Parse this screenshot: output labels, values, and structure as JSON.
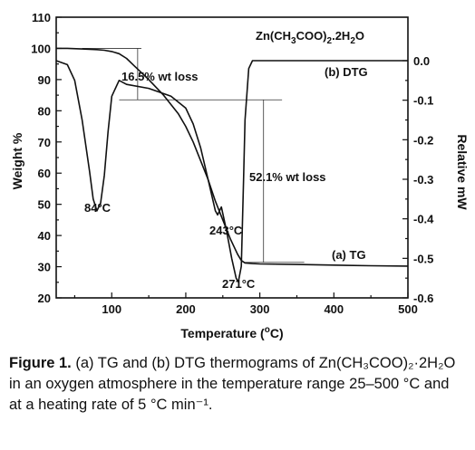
{
  "chart_data": {
    "type": "line",
    "xlabel": "Temperature (°C)",
    "ylabel_left": "Weight %",
    "ylabel_right": "Relative mW",
    "xlim": [
      25,
      500
    ],
    "ylim_left": [
      20,
      110
    ],
    "ylim_right": [
      -0.6,
      0.05
    ],
    "x_ticks": [
      100,
      200,
      300,
      400,
      500
    ],
    "y_ticks_left": [
      20,
      30,
      40,
      50,
      60,
      70,
      80,
      90,
      100,
      110
    ],
    "y_ticks_right": [
      "0.0",
      "-0.1",
      "-0.2",
      "-0.3",
      "-0.4",
      "-0.5",
      "-0.6"
    ],
    "compound_label": "Zn(CH3COO)2.2H2O",
    "series": [
      {
        "name": "(a) TG",
        "axis": "left",
        "x": [
          25,
          40,
          60,
          80,
          90,
          100,
          110,
          120,
          130,
          150,
          170,
          190,
          200,
          210,
          220,
          230,
          240,
          250,
          260,
          270,
          275,
          280,
          290,
          300,
          350,
          400,
          450,
          500
        ],
        "y": [
          100,
          100,
          99.8,
          99.6,
          99.4,
          99,
          98.3,
          96.8,
          94.5,
          90,
          85,
          79,
          75,
          70,
          64,
          58,
          51,
          45,
          39,
          34,
          32,
          31.2,
          31.0,
          30.9,
          30.7,
          30.5,
          30.3,
          30.2
        ]
      },
      {
        "name": "(b) DTG",
        "axis": "right",
        "x": [
          25,
          40,
          50,
          60,
          70,
          75,
          80,
          85,
          90,
          95,
          100,
          110,
          120,
          150,
          180,
          200,
          210,
          220,
          230,
          240,
          243,
          248,
          255,
          262,
          268,
          271,
          275,
          278,
          280,
          285,
          290,
          300,
          350,
          400,
          450,
          500
        ],
        "y": [
          0.0,
          -0.01,
          -0.05,
          -0.15,
          -0.28,
          -0.35,
          -0.38,
          -0.36,
          -0.29,
          -0.18,
          -0.09,
          -0.05,
          -0.06,
          -0.07,
          -0.09,
          -0.12,
          -0.16,
          -0.22,
          -0.3,
          -0.38,
          -0.39,
          -0.37,
          -0.43,
          -0.5,
          -0.55,
          -0.56,
          -0.52,
          -0.3,
          -0.15,
          -0.02,
          0.0,
          0.0,
          0.0,
          0.0,
          0.0,
          0.0
        ]
      }
    ],
    "annotations": [
      {
        "text": "16.5% wt loss",
        "from_weight": 100,
        "to_weight": 83.5
      },
      {
        "text": "52.1% wt loss",
        "from_weight": 83.5,
        "to_weight": 31.4
      },
      {
        "text": "84°C"
      },
      {
        "text": "243°C"
      },
      {
        "text": "271°C"
      }
    ],
    "series_labels": [
      "(b) DTG",
      "(a) TG"
    ]
  },
  "caption": {
    "label": "Figure 1.",
    "text": "(a) TG and (b) DTG thermograms of Zn(CH₃COO)₂·2H₂O in an oxygen atmosphere in the temperature range 25–500 °C and at a heating rate of 5 °C min⁻¹."
  }
}
